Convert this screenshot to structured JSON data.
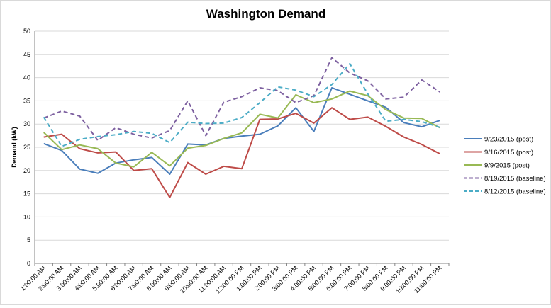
{
  "chart_data": {
    "type": "line",
    "title": "Washington Demand",
    "xlabel": "",
    "ylabel": "Demand (kW)",
    "ylim": [
      0,
      50
    ],
    "yticks": [
      0,
      5,
      10,
      15,
      20,
      25,
      30,
      35,
      40,
      45,
      50
    ],
    "grid": true,
    "legend_position": "right",
    "categories": [
      "1:00:00 AM",
      "2:00:00 AM",
      "3:00:00 AM",
      "4:00:00 AM",
      "5:00:00 AM",
      "6:00:00 AM",
      "7:00:00 AM",
      "8:00:00 AM",
      "9:00:00 AM",
      "10:00:00 AM",
      "11:00:00 AM",
      "12:00:00 PM",
      "1:00:00 PM",
      "2:00:00 PM",
      "3:00:00 PM",
      "4:00:00 PM",
      "5:00:00 PM",
      "6:00:00 PM",
      "7:00:00 PM",
      "8:00:00 PM",
      "9:00:00 PM",
      "10:00:00 PM",
      "11:00:00 PM"
    ],
    "series": [
      {
        "name": "9/23/2015 (post)",
        "color": "#4a7ebb",
        "dashed": false,
        "values": [
          25.8,
          24.3,
          20.3,
          19.4,
          21.6,
          22.3,
          22.8,
          19.2,
          25.7,
          25.5,
          26.9,
          27.4,
          27.8,
          29.6,
          33.5,
          28.4,
          37.8,
          36.4,
          35.0,
          33.6,
          30.3,
          29.4,
          30.8
        ]
      },
      {
        "name": "9/16/2015 (post)",
        "color": "#be4b48",
        "dashed": false,
        "values": [
          27.2,
          27.8,
          24.7,
          23.8,
          24.0,
          20.0,
          20.4,
          14.2,
          21.7,
          19.2,
          20.9,
          20.4,
          31.0,
          31.1,
          32.3,
          30.2,
          33.5,
          31.0,
          31.5,
          29.5,
          27.2,
          25.6,
          23.6
        ]
      },
      {
        "name": "9/9/2015 (post)",
        "color": "#98b954",
        "dashed": false,
        "values": [
          28.2,
          24.5,
          25.5,
          24.7,
          21.6,
          20.8,
          23.9,
          21.0,
          24.8,
          25.4,
          26.9,
          28.1,
          32.1,
          31.3,
          36.3,
          34.6,
          35.4,
          37.1,
          36.1,
          33.1,
          31.3,
          31.2,
          29.2
        ]
      },
      {
        "name": "8/19/2015 (baseline)",
        "color": "#7d60a0",
        "dashed": true,
        "values": [
          31.3,
          32.8,
          31.7,
          26.5,
          29.2,
          27.8,
          27.0,
          28.6,
          35.0,
          27.5,
          34.7,
          35.9,
          37.8,
          37.2,
          34.6,
          36.1,
          44.3,
          41.0,
          39.3,
          35.4,
          35.8,
          39.5,
          36.9
        ]
      },
      {
        "name": "8/12/2015 (baseline)",
        "color": "#4bacc6",
        "dashed": true,
        "values": [
          31.5,
          25.2,
          26.7,
          27.3,
          27.7,
          28.4,
          28.0,
          26.0,
          30.4,
          30.1,
          30.2,
          31.4,
          34.6,
          38.0,
          37.3,
          35.9,
          38.5,
          43.0,
          36.5,
          30.6,
          31.0,
          30.5,
          29.3
        ]
      }
    ]
  }
}
